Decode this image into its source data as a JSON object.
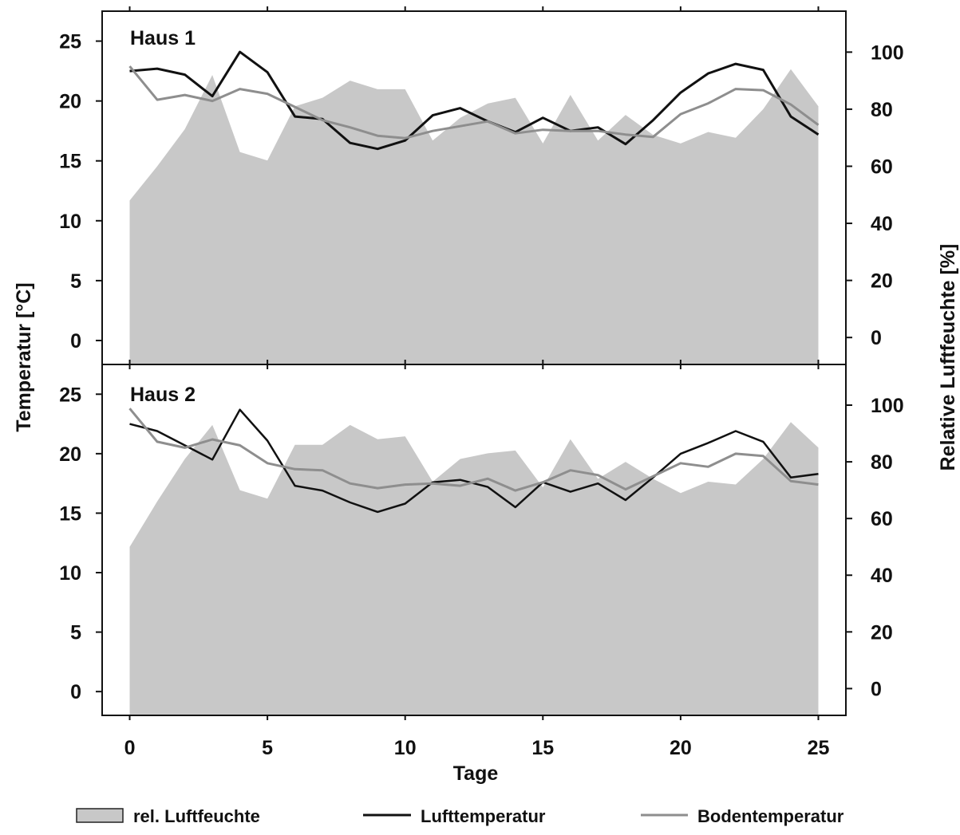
{
  "chart_data": {
    "type": "line",
    "xlabel": "Tage",
    "ylabel_left": "Temperatur [°C]",
    "ylabel_right": "Relative Luftfeuchte [%]",
    "x_ticks": [
      0,
      5,
      10,
      15,
      20,
      25
    ],
    "y_left_ticks": [
      0,
      5,
      10,
      15,
      20,
      25
    ],
    "y_right_ticks": [
      0,
      20,
      40,
      60,
      80,
      100
    ],
    "xlim": [
      -1,
      26
    ],
    "ylim_left": [
      -2,
      27.5
    ],
    "ylim_right": [
      -9.45,
      114.35
    ],
    "legend": [
      {
        "label": "rel. Luftfeuchte",
        "kind": "area",
        "color": "#c8c8c8"
      },
      {
        "label": "Lufttemperatur",
        "kind": "line",
        "color": "#111111"
      },
      {
        "label": "Bodentemperatur",
        "kind": "line",
        "color": "#8e8e8e"
      }
    ],
    "panels": [
      {
        "title": "Haus 1",
        "x": [
          0,
          1,
          2,
          3,
          4,
          5,
          6,
          7,
          8,
          9,
          10,
          11,
          12,
          13,
          14,
          15,
          16,
          17,
          18,
          19,
          20,
          21,
          22,
          23,
          24,
          25
        ],
        "series": [
          {
            "name": "rel. Luftfeuchte",
            "axis": "right",
            "kind": "area",
            "values": [
              48,
              60,
              73,
              92,
              65,
              62,
              81,
              84,
              90,
              87,
              87,
              69,
              77,
              82,
              84,
              68,
              85,
              69,
              78,
              71,
              68,
              72,
              70,
              80,
              94,
              81
            ]
          },
          {
            "name": "Lufttemperatur",
            "axis": "left",
            "kind": "line",
            "values": [
              22.5,
              22.7,
              22.2,
              20.4,
              24.1,
              22.4,
              18.7,
              18.5,
              16.5,
              16.0,
              16.7,
              18.8,
              19.4,
              18.3,
              17.4,
              18.6,
              17.5,
              17.8,
              16.4,
              18.4,
              20.7,
              22.3,
              23.1,
              22.6,
              18.7,
              17.2
            ]
          },
          {
            "name": "Bodentemperatur",
            "axis": "left",
            "kind": "line",
            "values": [
              22.9,
              20.1,
              20.5,
              20.0,
              21.0,
              20.6,
              19.5,
              18.4,
              17.8,
              17.1,
              16.9,
              17.5,
              17.9,
              18.3,
              17.3,
              17.6,
              17.5,
              17.5,
              17.2,
              17.0,
              18.9,
              19.8,
              21.0,
              20.9,
              19.7,
              18.0
            ]
          }
        ]
      },
      {
        "title": "Haus 2",
        "x": [
          0,
          1,
          2,
          3,
          4,
          5,
          6,
          7,
          8,
          9,
          10,
          11,
          12,
          13,
          14,
          15,
          16,
          17,
          18,
          19,
          20,
          21,
          22,
          23,
          24,
          25
        ],
        "series": [
          {
            "name": "rel. Luftfeuchte",
            "axis": "right",
            "kind": "area",
            "values": [
              50,
              66,
              81,
              93,
              70,
              67,
              86,
              86,
              93,
              88,
              89,
              73,
              81,
              83,
              84,
              71,
              88,
              74,
              80,
              74,
              69,
              73,
              72,
              81,
              94,
              85
            ]
          },
          {
            "name": "Lufttemperatur",
            "axis": "left",
            "kind": "line",
            "values": [
              22.5,
              21.9,
              20.7,
              19.5,
              23.7,
              21.1,
              17.3,
              16.9,
              15.9,
              15.1,
              15.8,
              17.6,
              17.8,
              17.2,
              15.5,
              17.6,
              16.8,
              17.5,
              16.1,
              18.0,
              20.0,
              20.9,
              21.9,
              21.0,
              18.0,
              18.3
            ]
          },
          {
            "name": "Bodentemperatur",
            "axis": "left",
            "kind": "line",
            "values": [
              23.8,
              21.0,
              20.5,
              21.2,
              20.7,
              19.2,
              18.7,
              18.6,
              17.5,
              17.1,
              17.4,
              17.5,
              17.3,
              17.9,
              16.9,
              17.6,
              18.6,
              18.2,
              17.0,
              18.1,
              19.2,
              18.9,
              20.0,
              19.8,
              17.7,
              17.4
            ]
          }
        ]
      }
    ]
  }
}
